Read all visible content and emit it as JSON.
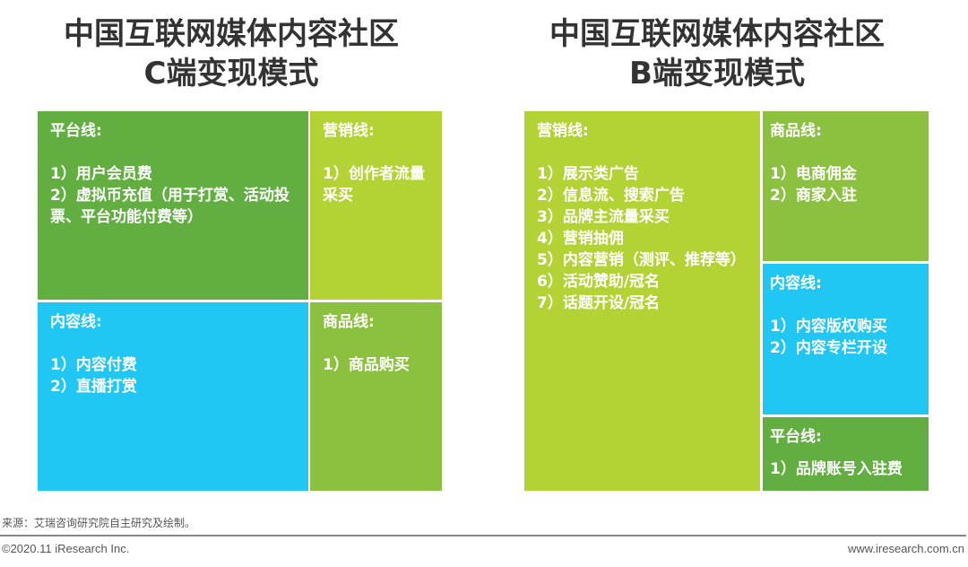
{
  "colors": {
    "dark_green": "#62ae41",
    "yellow_green": "#b3d234",
    "blue": "#1fc7f2",
    "mid_green": "#8bc13e"
  },
  "left": {
    "title_line1": "中国互联网媒体内容社区",
    "title_line2": "C端变现模式",
    "boxes": [
      {
        "heading": "平台线:",
        "items": [
          "1）用户会员费",
          "2）虚拟币充值（用于打赏、活动投票、平台功能付费等）"
        ]
      },
      {
        "heading": "营销线:",
        "items": [
          "1）创作者流量采买"
        ]
      },
      {
        "heading": "内容线:",
        "items": [
          "1）内容付费",
          "2）直播打赏"
        ]
      },
      {
        "heading": "商品线:",
        "items": [
          "1）商品购买"
        ]
      }
    ]
  },
  "right": {
    "title_line1": "中国互联网媒体内容社区",
    "title_line2": "B端变现模式",
    "boxes": [
      {
        "heading": "营销线:",
        "items": [
          "1）展示类广告",
          "2）信息流、搜索广告",
          "3）品牌主流量采买",
          "4）营销抽佣",
          "5）内容营销（测评、推荐等）",
          "6）活动赞助/冠名",
          "7）话题开设/冠名"
        ]
      },
      {
        "heading": "商品线:",
        "items": [
          "1）电商佣金",
          "2）商家入驻"
        ]
      },
      {
        "heading": "内容线:",
        "items": [
          "1）内容版权购买",
          "2）内容专栏开设"
        ]
      },
      {
        "heading": "平台线:",
        "items": [
          "1）品牌账号入驻费"
        ]
      }
    ]
  },
  "footer": {
    "source": "来源：艾瑞咨询研究院自主研究及绘制。",
    "copyright": "©2020.11 iResearch Inc.",
    "website": "www.iresearch.com.cn"
  }
}
